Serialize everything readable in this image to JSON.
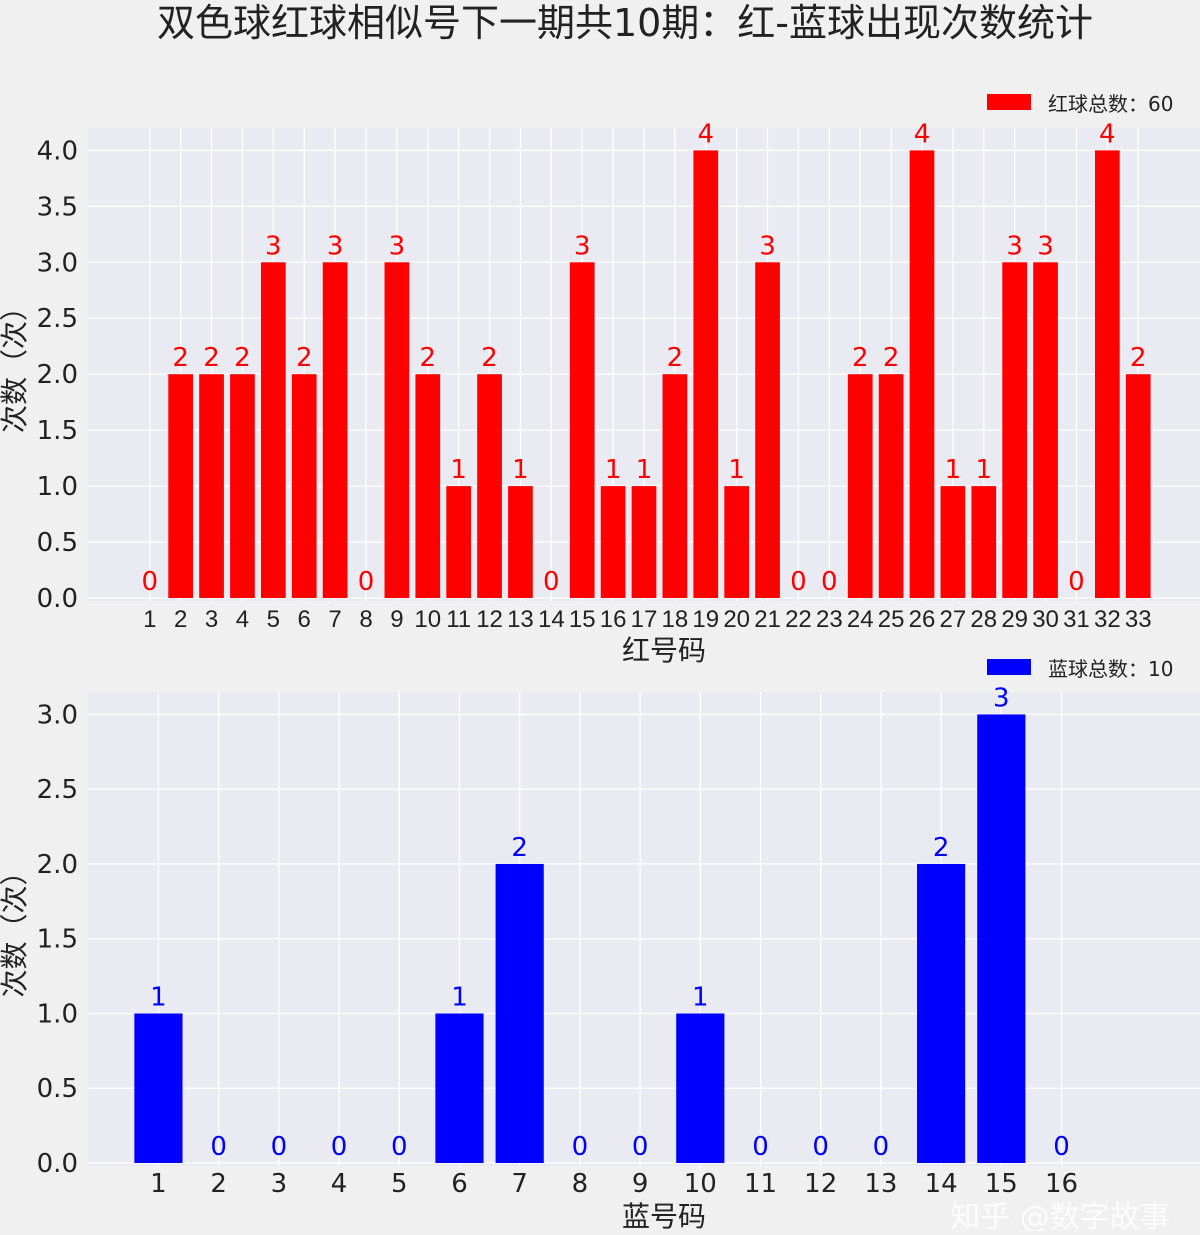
{
  "title": "双色球红球相似号下一期共10期：红-蓝球出现次数统计",
  "watermark": "知乎 @数字故事",
  "chart_data": [
    {
      "type": "bar",
      "categories": [
        "1",
        "2",
        "3",
        "4",
        "5",
        "6",
        "7",
        "8",
        "9",
        "10",
        "11",
        "12",
        "13",
        "14",
        "15",
        "16",
        "17",
        "18",
        "19",
        "20",
        "21",
        "22",
        "23",
        "24",
        "25",
        "26",
        "27",
        "28",
        "29",
        "30",
        "31",
        "32",
        "33"
      ],
      "values": [
        0,
        2,
        2,
        2,
        3,
        2,
        3,
        0,
        3,
        2,
        1,
        2,
        1,
        0,
        3,
        1,
        1,
        2,
        4,
        1,
        3,
        0,
        0,
        2,
        2,
        4,
        1,
        1,
        3,
        3,
        0,
        4,
        2
      ],
      "xlabel": "红号码",
      "ylabel": "次数（次）",
      "ylim": [
        0,
        4.2
      ],
      "yticks": [
        "0.0",
        "0.5",
        "1.0",
        "1.5",
        "2.0",
        "2.5",
        "3.0",
        "3.5",
        "4.0"
      ],
      "legend": "红球总数：60",
      "legend_position": "top-right",
      "color": "#ff0000",
      "grid": true
    },
    {
      "type": "bar",
      "categories": [
        "1",
        "2",
        "3",
        "4",
        "5",
        "6",
        "7",
        "8",
        "9",
        "10",
        "11",
        "12",
        "13",
        "14",
        "15",
        "16"
      ],
      "values": [
        1,
        0,
        0,
        0,
        0,
        1,
        2,
        0,
        0,
        1,
        0,
        0,
        0,
        2,
        3,
        0
      ],
      "xlabel": "蓝号码",
      "ylabel": "次数（次）",
      "ylim": [
        0,
        3.15
      ],
      "yticks": [
        "0.0",
        "0.5",
        "1.0",
        "1.5",
        "2.0",
        "2.5",
        "3.0"
      ],
      "legend": "蓝球总数：10",
      "legend_position": "top-right",
      "color": "#0000ff",
      "grid": true
    }
  ]
}
